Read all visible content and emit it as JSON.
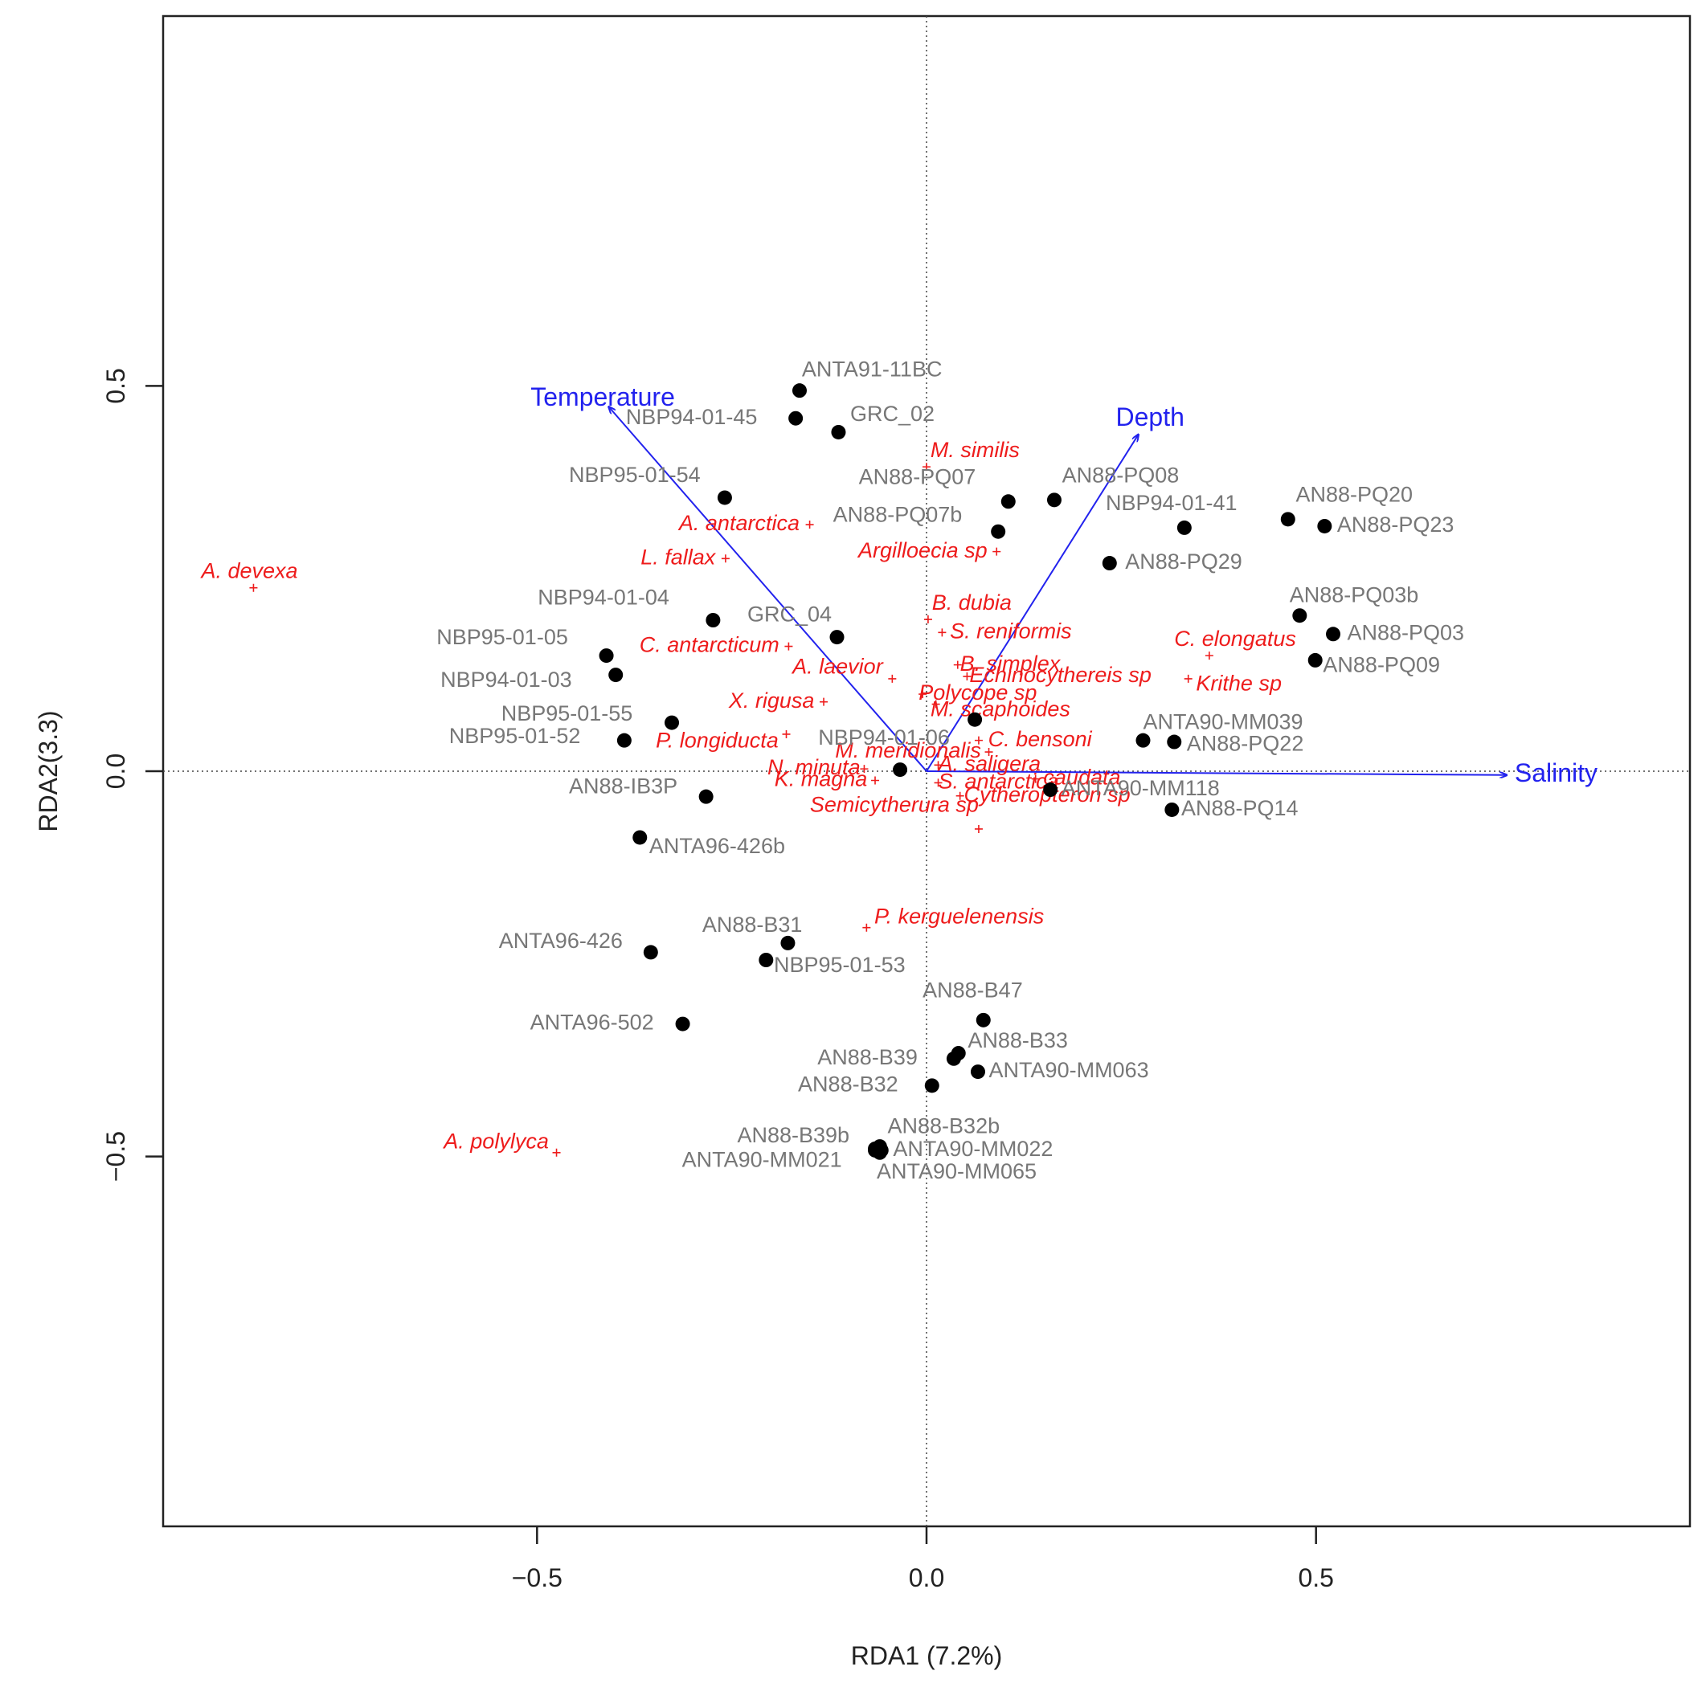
{
  "chart_data": {
    "type": "scatter",
    "title": "",
    "xlabel": "RDA1 (7.2%)",
    "ylabel": "RDA2(3.3)",
    "xlim": [
      -0.98,
      0.98
    ],
    "ylim": [
      -0.98,
      0.98
    ],
    "xticks": [
      -0.5,
      0.0,
      0.5
    ],
    "yticks": [
      -0.5,
      0.0,
      0.5
    ],
    "xtick_labels": [
      "−0.5",
      "0.0",
      "0.5"
    ],
    "ytick_labels": [
      "−0.5",
      "0.0",
      "0.5"
    ],
    "zero_lines": true,
    "colors": {
      "sites": "#000000",
      "site_labels": "#777777",
      "species": "#ee1c1c",
      "env": "#2222ee",
      "axes": "#222222"
    },
    "sites": [
      {
        "label": "ANTA91-11BC",
        "x": -0.163,
        "y": 0.494,
        "anchor": "start",
        "dx": 0.003,
        "dy": 0.026
      },
      {
        "label": "NBP94-01-45",
        "x": -0.168,
        "y": 0.458,
        "anchor": "start",
        "dx": -0.218,
        "dy": 0.0
      },
      {
        "label": "GRC_02",
        "x": -0.113,
        "y": 0.44,
        "anchor": "start",
        "dx": 0.015,
        "dy": 0.022
      },
      {
        "label": "NBP95-01-54",
        "x": -0.259,
        "y": 0.355,
        "anchor": "start",
        "dx": -0.2,
        "dy": 0.028
      },
      {
        "label": "AN88-PQ07",
        "x": 0.105,
        "y": 0.35,
        "anchor": "start",
        "dx": -0.192,
        "dy": 0.03
      },
      {
        "label": "AN88-PQ08",
        "x": 0.164,
        "y": 0.352,
        "anchor": "start",
        "dx": 0.01,
        "dy": 0.03
      },
      {
        "label": "AN88-PQ07b",
        "x": 0.092,
        "y": 0.311,
        "anchor": "start",
        "dx": -0.212,
        "dy": 0.02
      },
      {
        "label": "NBP94-01-41",
        "x": 0.331,
        "y": 0.316,
        "anchor": "start",
        "dx": -0.101,
        "dy": 0.03
      },
      {
        "label": "AN88-PQ20",
        "x": 0.464,
        "y": 0.327,
        "anchor": "start",
        "dx": 0.01,
        "dy": 0.03
      },
      {
        "label": "AN88-PQ23",
        "x": 0.511,
        "y": 0.318,
        "anchor": "start",
        "dx": 0.016,
        "dy": 0.0
      },
      {
        "label": "AN88-PQ29",
        "x": 0.235,
        "y": 0.27,
        "anchor": "start",
        "dx": 0.02,
        "dy": 0.0
      },
      {
        "label": "NBP94-01-04",
        "x": -0.274,
        "y": 0.196,
        "anchor": "start",
        "dx": -0.225,
        "dy": 0.028
      },
      {
        "label": "GRC_04",
        "x": -0.115,
        "y": 0.174,
        "anchor": "start",
        "dx": -0.115,
        "dy": 0.028
      },
      {
        "label": "AN88-PQ03b",
        "x": 0.479,
        "y": 0.202,
        "anchor": "start",
        "dx": -0.013,
        "dy": 0.025
      },
      {
        "label": "AN88-PQ03",
        "x": 0.522,
        "y": 0.178,
        "anchor": "start",
        "dx": 0.018,
        "dy": 0.0
      },
      {
        "label": "AN88-PQ09",
        "x": 0.499,
        "y": 0.144,
        "anchor": "start",
        "dx": 0.01,
        "dy": -0.008
      },
      {
        "label": "NBP95-01-05",
        "x": -0.411,
        "y": 0.15,
        "anchor": "start",
        "dx": -0.218,
        "dy": 0.022
      },
      {
        "label": "NBP94-01-03",
        "x": -0.399,
        "y": 0.125,
        "anchor": "start",
        "dx": -0.225,
        "dy": -0.008
      },
      {
        "label": "NBP95-01-55",
        "x": -0.327,
        "y": 0.063,
        "anchor": "start",
        "dx": -0.219,
        "dy": 0.01
      },
      {
        "label": "NBP95-01-52",
        "x": -0.388,
        "y": 0.04,
        "anchor": "start",
        "dx": -0.225,
        "dy": 0.004
      },
      {
        "label": "NBP94-01-06",
        "x": -0.034,
        "y": 0.002,
        "anchor": "start",
        "dx": -0.105,
        "dy": 0.04
      },
      {
        "label": "",
        "x": 0.062,
        "y": 0.067,
        "anchor": "start",
        "dx": 0.0,
        "dy": 0.0
      },
      {
        "label": "ANTA90-MM039",
        "x": 0.278,
        "y": 0.04,
        "anchor": "start",
        "dx": 0.0,
        "dy": 0.022
      },
      {
        "label": "AN88-PQ22",
        "x": 0.318,
        "y": 0.038,
        "anchor": "start",
        "dx": 0.016,
        "dy": -0.004
      },
      {
        "label": "ANTA90-MM118",
        "x": 0.159,
        "y": -0.024,
        "anchor": "start",
        "dx": 0.014,
        "dy": 0.0
      },
      {
        "label": "AN88-PQ14",
        "x": 0.315,
        "y": -0.05,
        "anchor": "start",
        "dx": 0.012,
        "dy": 0.0
      },
      {
        "label": "AN88-IB3P",
        "x": -0.283,
        "y": -0.033,
        "anchor": "start",
        "dx": -0.176,
        "dy": 0.012
      },
      {
        "label": "ANTA96-426b",
        "x": -0.368,
        "y": -0.086,
        "anchor": "start",
        "dx": 0.012,
        "dy": -0.013
      },
      {
        "label": "AN88-B31",
        "x": -0.178,
        "y": -0.223,
        "anchor": "start",
        "dx": -0.11,
        "dy": 0.022
      },
      {
        "label": "ANTA96-426",
        "x": -0.354,
        "y": -0.235,
        "anchor": "start",
        "dx": -0.195,
        "dy": 0.013
      },
      {
        "label": "NBP95-01-53",
        "x": -0.206,
        "y": -0.245,
        "anchor": "start",
        "dx": 0.01,
        "dy": -0.008
      },
      {
        "label": "AN88-B47",
        "x": 0.073,
        "y": -0.323,
        "anchor": "start",
        "dx": -0.078,
        "dy": 0.037
      },
      {
        "label": "ANTA96-502",
        "x": -0.313,
        "y": -0.328,
        "anchor": "start",
        "dx": -0.196,
        "dy": 0.0
      },
      {
        "label": "AN88-B33",
        "x": 0.041,
        "y": -0.366,
        "anchor": "start",
        "dx": 0.012,
        "dy": 0.015
      },
      {
        "label": "AN88-B39",
        "x": 0.035,
        "y": -0.373,
        "anchor": "start",
        "dx": -0.175,
        "dy": 0.0
      },
      {
        "label": "ANTA90-MM063",
        "x": 0.066,
        "y": -0.39,
        "anchor": "start",
        "dx": 0.014,
        "dy": 0.0
      },
      {
        "label": "AN88-B32",
        "x": 0.007,
        "y": -0.408,
        "anchor": "start",
        "dx": -0.172,
        "dy": 0.0
      },
      {
        "label": "AN88-B39b",
        "x": -0.066,
        "y": -0.49,
        "anchor": "start",
        "dx": -0.177,
        "dy": 0.016
      },
      {
        "label": "AN88-B32b",
        "x": -0.06,
        "y": -0.487,
        "anchor": "start",
        "dx": 0.01,
        "dy": 0.025
      },
      {
        "label": "ANTA90-MM022",
        "x": -0.058,
        "y": -0.492,
        "anchor": "start",
        "dx": 0.015,
        "dy": 0.0
      },
      {
        "label": "ANTA90-MM021",
        "x": -0.066,
        "y": -0.492,
        "anchor": "start",
        "dx": -0.248,
        "dy": -0.014
      },
      {
        "label": "ANTA90-MM065",
        "x": -0.06,
        "y": -0.495,
        "anchor": "start",
        "dx": -0.004,
        "dy": -0.026
      }
    ],
    "species": [
      {
        "label": "M. similis",
        "x": 0.0,
        "y": 0.395,
        "anchor": "start",
        "dx": 0.005,
        "dy": 0.02
      },
      {
        "label": "A. antarctica",
        "x": -0.15,
        "y": 0.32,
        "anchor": "end",
        "dx": -0.013,
        "dy": 0.0
      },
      {
        "label": "Argilloecia sp",
        "x": 0.09,
        "y": 0.285,
        "anchor": "end",
        "dx": -0.012,
        "dy": 0.0
      },
      {
        "label": "L. fallax",
        "x": -0.258,
        "y": 0.276,
        "anchor": "end",
        "dx": -0.013,
        "dy": 0.0
      },
      {
        "label": "A. devexa",
        "x": -0.864,
        "y": 0.238,
        "anchor": "start",
        "dx": -0.067,
        "dy": 0.02
      },
      {
        "label": "B. dubia",
        "x": 0.002,
        "y": 0.197,
        "anchor": "start",
        "dx": 0.005,
        "dy": 0.02
      },
      {
        "label": "S. reniformis",
        "x": 0.02,
        "y": 0.18,
        "anchor": "start",
        "dx": 0.01,
        "dy": 0.0
      },
      {
        "label": "C. antarcticum",
        "x": -0.177,
        "y": 0.162,
        "anchor": "end",
        "dx": -0.012,
        "dy": 0.0
      },
      {
        "label": "C. elongatus",
        "x": 0.363,
        "y": 0.15,
        "anchor": "start",
        "dx": -0.045,
        "dy": 0.02
      },
      {
        "label": "A. laevior",
        "x": -0.044,
        "y": 0.12,
        "anchor": "end",
        "dx": -0.012,
        "dy": 0.014
      },
      {
        "label": "B. simplex",
        "x": 0.04,
        "y": 0.138,
        "anchor": "start",
        "dx": 0.003,
        "dy": 0.0
      },
      {
        "label": "Echinocythereis sp",
        "x": 0.052,
        "y": 0.123,
        "anchor": "start",
        "dx": 0.003,
        "dy": 0.0
      },
      {
        "label": "Krithe sp",
        "x": 0.336,
        "y": 0.12,
        "anchor": "start",
        "dx": 0.01,
        "dy": -0.008
      },
      {
        "label": "Polycope sp",
        "x": -0.005,
        "y": 0.1,
        "anchor": "start",
        "dx": -0.005,
        "dy": 0.0
      },
      {
        "label": "X. rigusa",
        "x": -0.132,
        "y": 0.09,
        "anchor": "end",
        "dx": -0.012,
        "dy": 0.0
      },
      {
        "label": "M. scaphoides",
        "x": 0.012,
        "y": 0.087,
        "anchor": "start",
        "dx": -0.007,
        "dy": -0.008
      },
      {
        "label": "P. longiducta",
        "x": -0.18,
        "y": 0.048,
        "anchor": "end",
        "dx": -0.01,
        "dy": -0.01
      },
      {
        "label": "C. bensoni",
        "x": 0.067,
        "y": 0.04,
        "anchor": "start",
        "dx": 0.012,
        "dy": 0.0
      },
      {
        "label": "M. meridionalis",
        "x": 0.08,
        "y": 0.025,
        "anchor": "end",
        "dx": -0.01,
        "dy": 0.0
      },
      {
        "label": "A. saligera",
        "x": 0.015,
        "y": 0.008,
        "anchor": "start",
        "dx": 0.0,
        "dy": 0.0
      },
      {
        "label": "N. minuta",
        "x": -0.08,
        "y": 0.003,
        "anchor": "end",
        "dx": -0.005,
        "dy": 0.0
      },
      {
        "label": "S. antarctica",
        "x": 0.015,
        "y": -0.015,
        "anchor": "start",
        "dx": 0.0,
        "dy": 0.0
      },
      {
        "label": "caudata",
        "x": 0.14,
        "y": -0.01,
        "anchor": "start",
        "dx": 0.01,
        "dy": 0.0
      },
      {
        "label": "K. magna",
        "x": -0.066,
        "y": -0.012,
        "anchor": "end",
        "dx": -0.01,
        "dy": 0.0
      },
      {
        "label": "Cytheropteron sp",
        "x": 0.043,
        "y": -0.032,
        "anchor": "start",
        "dx": 0.005,
        "dy": 0.0
      },
      {
        "label": "Semicytherura sp",
        "x": 0.067,
        "y": -0.075,
        "anchor": "end",
        "dx": 0.0,
        "dy": 0.03
      },
      {
        "label": "P. kerguelenensis",
        "x": -0.077,
        "y": -0.203,
        "anchor": "start",
        "dx": 0.01,
        "dy": 0.013
      },
      {
        "label": "A. polylyca",
        "x": -0.475,
        "y": -0.495,
        "anchor": "end",
        "dx": -0.01,
        "dy": 0.013
      }
    ],
    "env": [
      {
        "name": "Temperature",
        "x": -0.408,
        "y": 0.473,
        "anchor": "end",
        "dx": 0.085,
        "dy": 0.01
      },
      {
        "name": "Depth",
        "x": 0.272,
        "y": 0.437,
        "anchor": "middle",
        "dx": 0.015,
        "dy": 0.02
      },
      {
        "name": "Salinity",
        "x": 0.745,
        "y": -0.005,
        "anchor": "start",
        "dx": 0.01,
        "dy": 0.0
      }
    ]
  }
}
